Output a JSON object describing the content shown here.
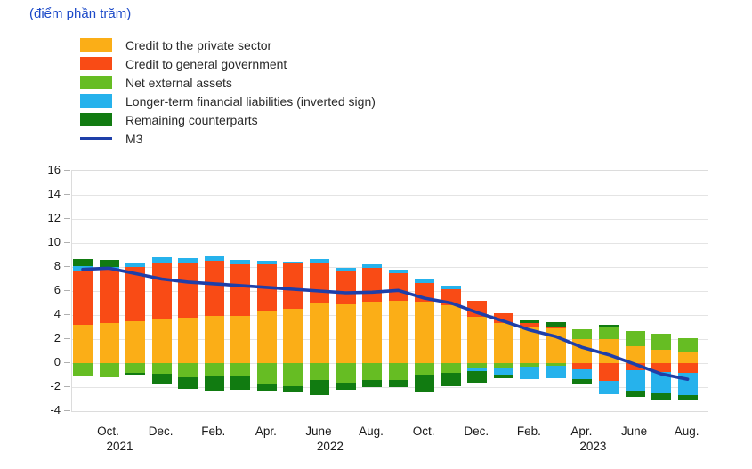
{
  "chart_data": {
    "type": "stacked-bar-with-line",
    "title": "(điểm phần trăm)",
    "title_color": "#1B49C8",
    "grid": "horizontal",
    "legend_position": "top-left",
    "ylim": [
      -4,
      16
    ],
    "y_ticks": [
      "16",
      "14",
      "12",
      "10",
      "8",
      "6",
      "4",
      "2",
      "0",
      "-2",
      "-4"
    ],
    "x_ticks": [
      {
        "label": "Oct.",
        "year": "2021"
      },
      {
        "label": "Dec.",
        "year": ""
      },
      {
        "label": "Feb.",
        "year": ""
      },
      {
        "label": "Apr.",
        "year": ""
      },
      {
        "label": "June",
        "year": "2022"
      },
      {
        "label": "Aug.",
        "year": ""
      },
      {
        "label": "Oct.",
        "year": ""
      },
      {
        "label": "Dec.",
        "year": ""
      },
      {
        "label": "Feb.",
        "year": ""
      },
      {
        "label": "Apr.",
        "year": "2023"
      },
      {
        "label": "June",
        "year": ""
      },
      {
        "label": "Aug.",
        "year": ""
      }
    ],
    "categories": [
      "Sep. 2021",
      "Oct. 2021",
      "Nov. 2021",
      "Dec. 2021",
      "Jan. 2022",
      "Feb. 2022",
      "Mar. 2022",
      "Apr. 2022",
      "May 2022",
      "June 2022",
      "July 2022",
      "Aug. 2022",
      "Sep. 2022",
      "Oct. 2022",
      "Nov. 2022",
      "Dec. 2022",
      "Jan. 2023",
      "Feb. 2023",
      "Mar. 2023",
      "Apr. 2023",
      "May 2023",
      "June 2023",
      "July 2023",
      "Aug. 2023"
    ],
    "series": [
      {
        "name": "Credit to the private sector",
        "color": "#FBAE17",
        "values": [
          3.2,
          3.35,
          3.5,
          3.7,
          3.8,
          3.95,
          3.9,
          4.3,
          4.5,
          4.95,
          4.9,
          5.1,
          5.15,
          5.1,
          4.85,
          3.85,
          3.3,
          3.0,
          2.9,
          2.0,
          2.0,
          1.4,
          1.1,
          0.95
        ]
      },
      {
        "name": "Credit to general government",
        "color": "#F94B15",
        "values": [
          4.5,
          4.5,
          4.5,
          4.7,
          4.6,
          4.55,
          4.3,
          3.9,
          3.8,
          3.4,
          2.7,
          2.8,
          2.3,
          1.55,
          1.3,
          1.35,
          0.85,
          0.3,
          0.1,
          -0.5,
          -1.45,
          -0.6,
          -0.75,
          -0.8
        ]
      },
      {
        "name": "Net external assets",
        "color": "#66BD23",
        "values": [
          -1.1,
          -1.15,
          -0.8,
          -0.9,
          -1.15,
          -1.1,
          -1.1,
          -1.7,
          -1.95,
          -1.4,
          -1.6,
          -1.4,
          -1.4,
          -0.95,
          -0.85,
          -0.4,
          -0.35,
          -0.3,
          -0.2,
          0.8,
          0.95,
          1.25,
          1.35,
          1.1
        ]
      },
      {
        "name": "Longer-term financial liabilities (inverted sign)",
        "color": "#26B2EC",
        "values": [
          0.35,
          0.15,
          0.4,
          0.4,
          0.35,
          0.4,
          0.4,
          0.35,
          0.15,
          0.35,
          0.3,
          0.35,
          0.3,
          0.4,
          0.3,
          -0.3,
          -0.6,
          -1.05,
          -1.05,
          -0.85,
          -1.15,
          -1.7,
          -1.75,
          -1.85
        ]
      },
      {
        "name": "Remaining counterparts",
        "color": "#117B11",
        "values": [
          0.6,
          0.6,
          -0.2,
          -0.9,
          -1.0,
          -1.2,
          -1.1,
          -0.6,
          -0.5,
          -1.3,
          -0.6,
          -0.6,
          -0.6,
          -1.5,
          -1.05,
          -0.9,
          -0.3,
          0.25,
          0.4,
          -0.45,
          0.25,
          -0.5,
          -0.55,
          -0.45
        ]
      }
    ],
    "line_series": {
      "name": "M3",
      "color": "#1E3FA9",
      "values": [
        7.8,
        7.9,
        7.45,
        7.0,
        6.75,
        6.6,
        6.45,
        6.3,
        6.15,
        6.0,
        5.85,
        5.9,
        6.05,
        5.4,
        5.0,
        4.2,
        3.5,
        2.75,
        2.2,
        1.3,
        0.7,
        -0.1,
        -0.9,
        -1.35
      ]
    }
  }
}
